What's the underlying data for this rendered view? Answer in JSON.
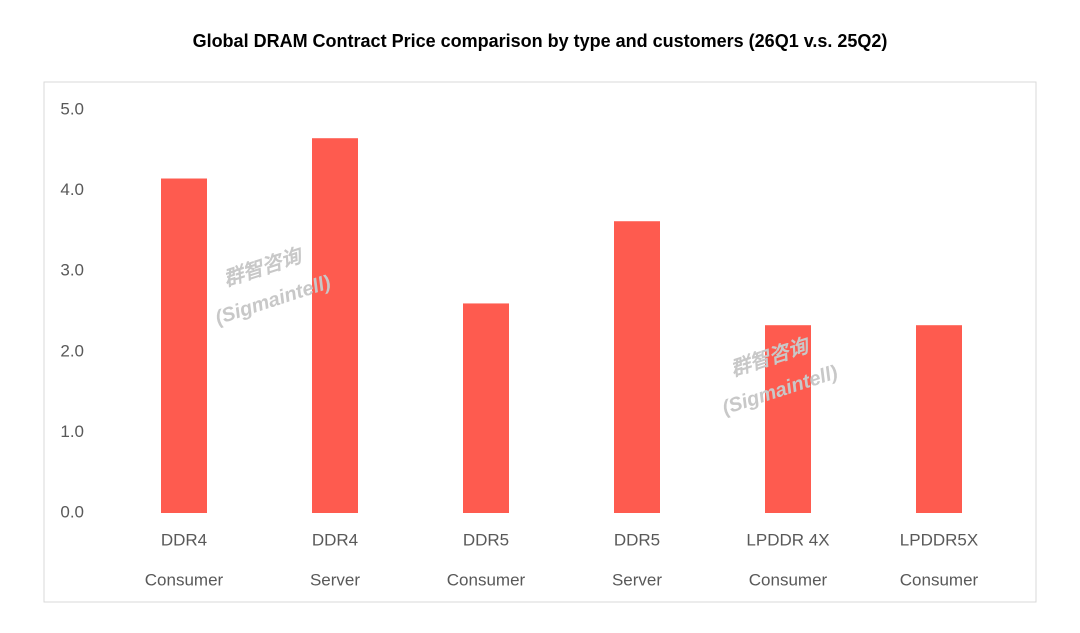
{
  "chart_data": {
    "type": "bar",
    "title": "Global DRAM Contract Price comparison by type and customers (26Q1 v.s. 25Q2)",
    "categories": [
      [
        "DDR4",
        "Consumer"
      ],
      [
        "DDR4",
        "Server"
      ],
      [
        "DDR5",
        "Consumer"
      ],
      [
        "DDR5",
        "Server"
      ],
      [
        "LPDDR 4X",
        "Consumer"
      ],
      [
        "LPDDR5X",
        "Consumer"
      ]
    ],
    "values": [
      4.15,
      4.65,
      2.6,
      3.62,
      2.33,
      2.33
    ],
    "color": "#fe5b4f",
    "ylim": [
      0,
      5
    ],
    "yticks": [
      {
        "value": 0,
        "label": "0.0"
      },
      {
        "value": 1,
        "label": "1.0"
      },
      {
        "value": 2,
        "label": "2.0"
      },
      {
        "value": 3,
        "label": "3.0"
      },
      {
        "value": 4,
        "label": "4.0"
      },
      {
        "value": 5,
        "label": "5.0"
      }
    ],
    "grid": false,
    "annotations": [
      [
        "群智咨询",
        "(Sigmaintell)"
      ],
      [
        "群智咨询",
        "(Sigmaintell)"
      ]
    ]
  }
}
